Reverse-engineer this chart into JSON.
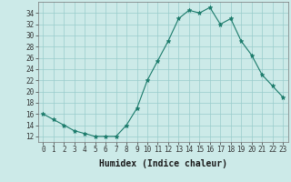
{
  "x": [
    0,
    1,
    2,
    3,
    4,
    5,
    6,
    7,
    8,
    9,
    10,
    11,
    12,
    13,
    14,
    15,
    16,
    17,
    18,
    19,
    20,
    21,
    22,
    23
  ],
  "y": [
    16,
    15,
    14,
    13,
    12.5,
    12,
    12,
    12,
    14,
    17,
    22,
    25.5,
    29,
    33,
    34.5,
    34,
    35,
    32,
    33,
    29,
    26.5,
    23,
    21,
    19
  ],
  "line_color": "#1a7a6a",
  "marker": "*",
  "marker_size": 3.5,
  "bg_color": "#cceae8",
  "grid_color": "#99cccc",
  "xlabel": "Humidex (Indice chaleur)",
  "xlabel_fontsize": 7,
  "ylabel_ticks": [
    12,
    14,
    16,
    18,
    20,
    22,
    24,
    26,
    28,
    30,
    32,
    34
  ],
  "ylim": [
    11,
    36
  ],
  "xlim": [
    -0.5,
    23.5
  ],
  "xticks": [
    0,
    1,
    2,
    3,
    4,
    5,
    6,
    7,
    8,
    9,
    10,
    11,
    12,
    13,
    14,
    15,
    16,
    17,
    18,
    19,
    20,
    21,
    22,
    23
  ],
  "tick_fontsize": 5.5
}
